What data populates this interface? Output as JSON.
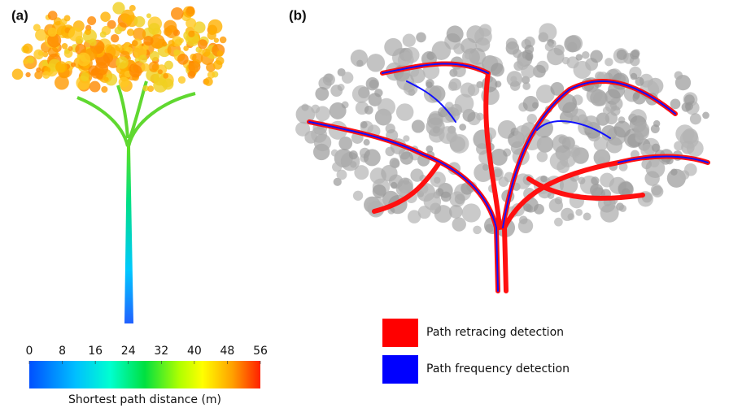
{
  "panels": [
    {
      "label": "(a)",
      "colorbar": {
        "lim": [
          0,
          56
        ],
        "ticks": [
          0,
          8,
          16,
          24,
          32,
          40,
          48,
          56
        ],
        "label": "Shortest path distance (m)"
      }
    },
    {
      "label": "(b)",
      "legend": [
        {
          "name": "Path retracing detection",
          "color": "#ff0000"
        },
        {
          "name": "Path frequency detection",
          "color": "#0000ff"
        }
      ]
    }
  ]
}
